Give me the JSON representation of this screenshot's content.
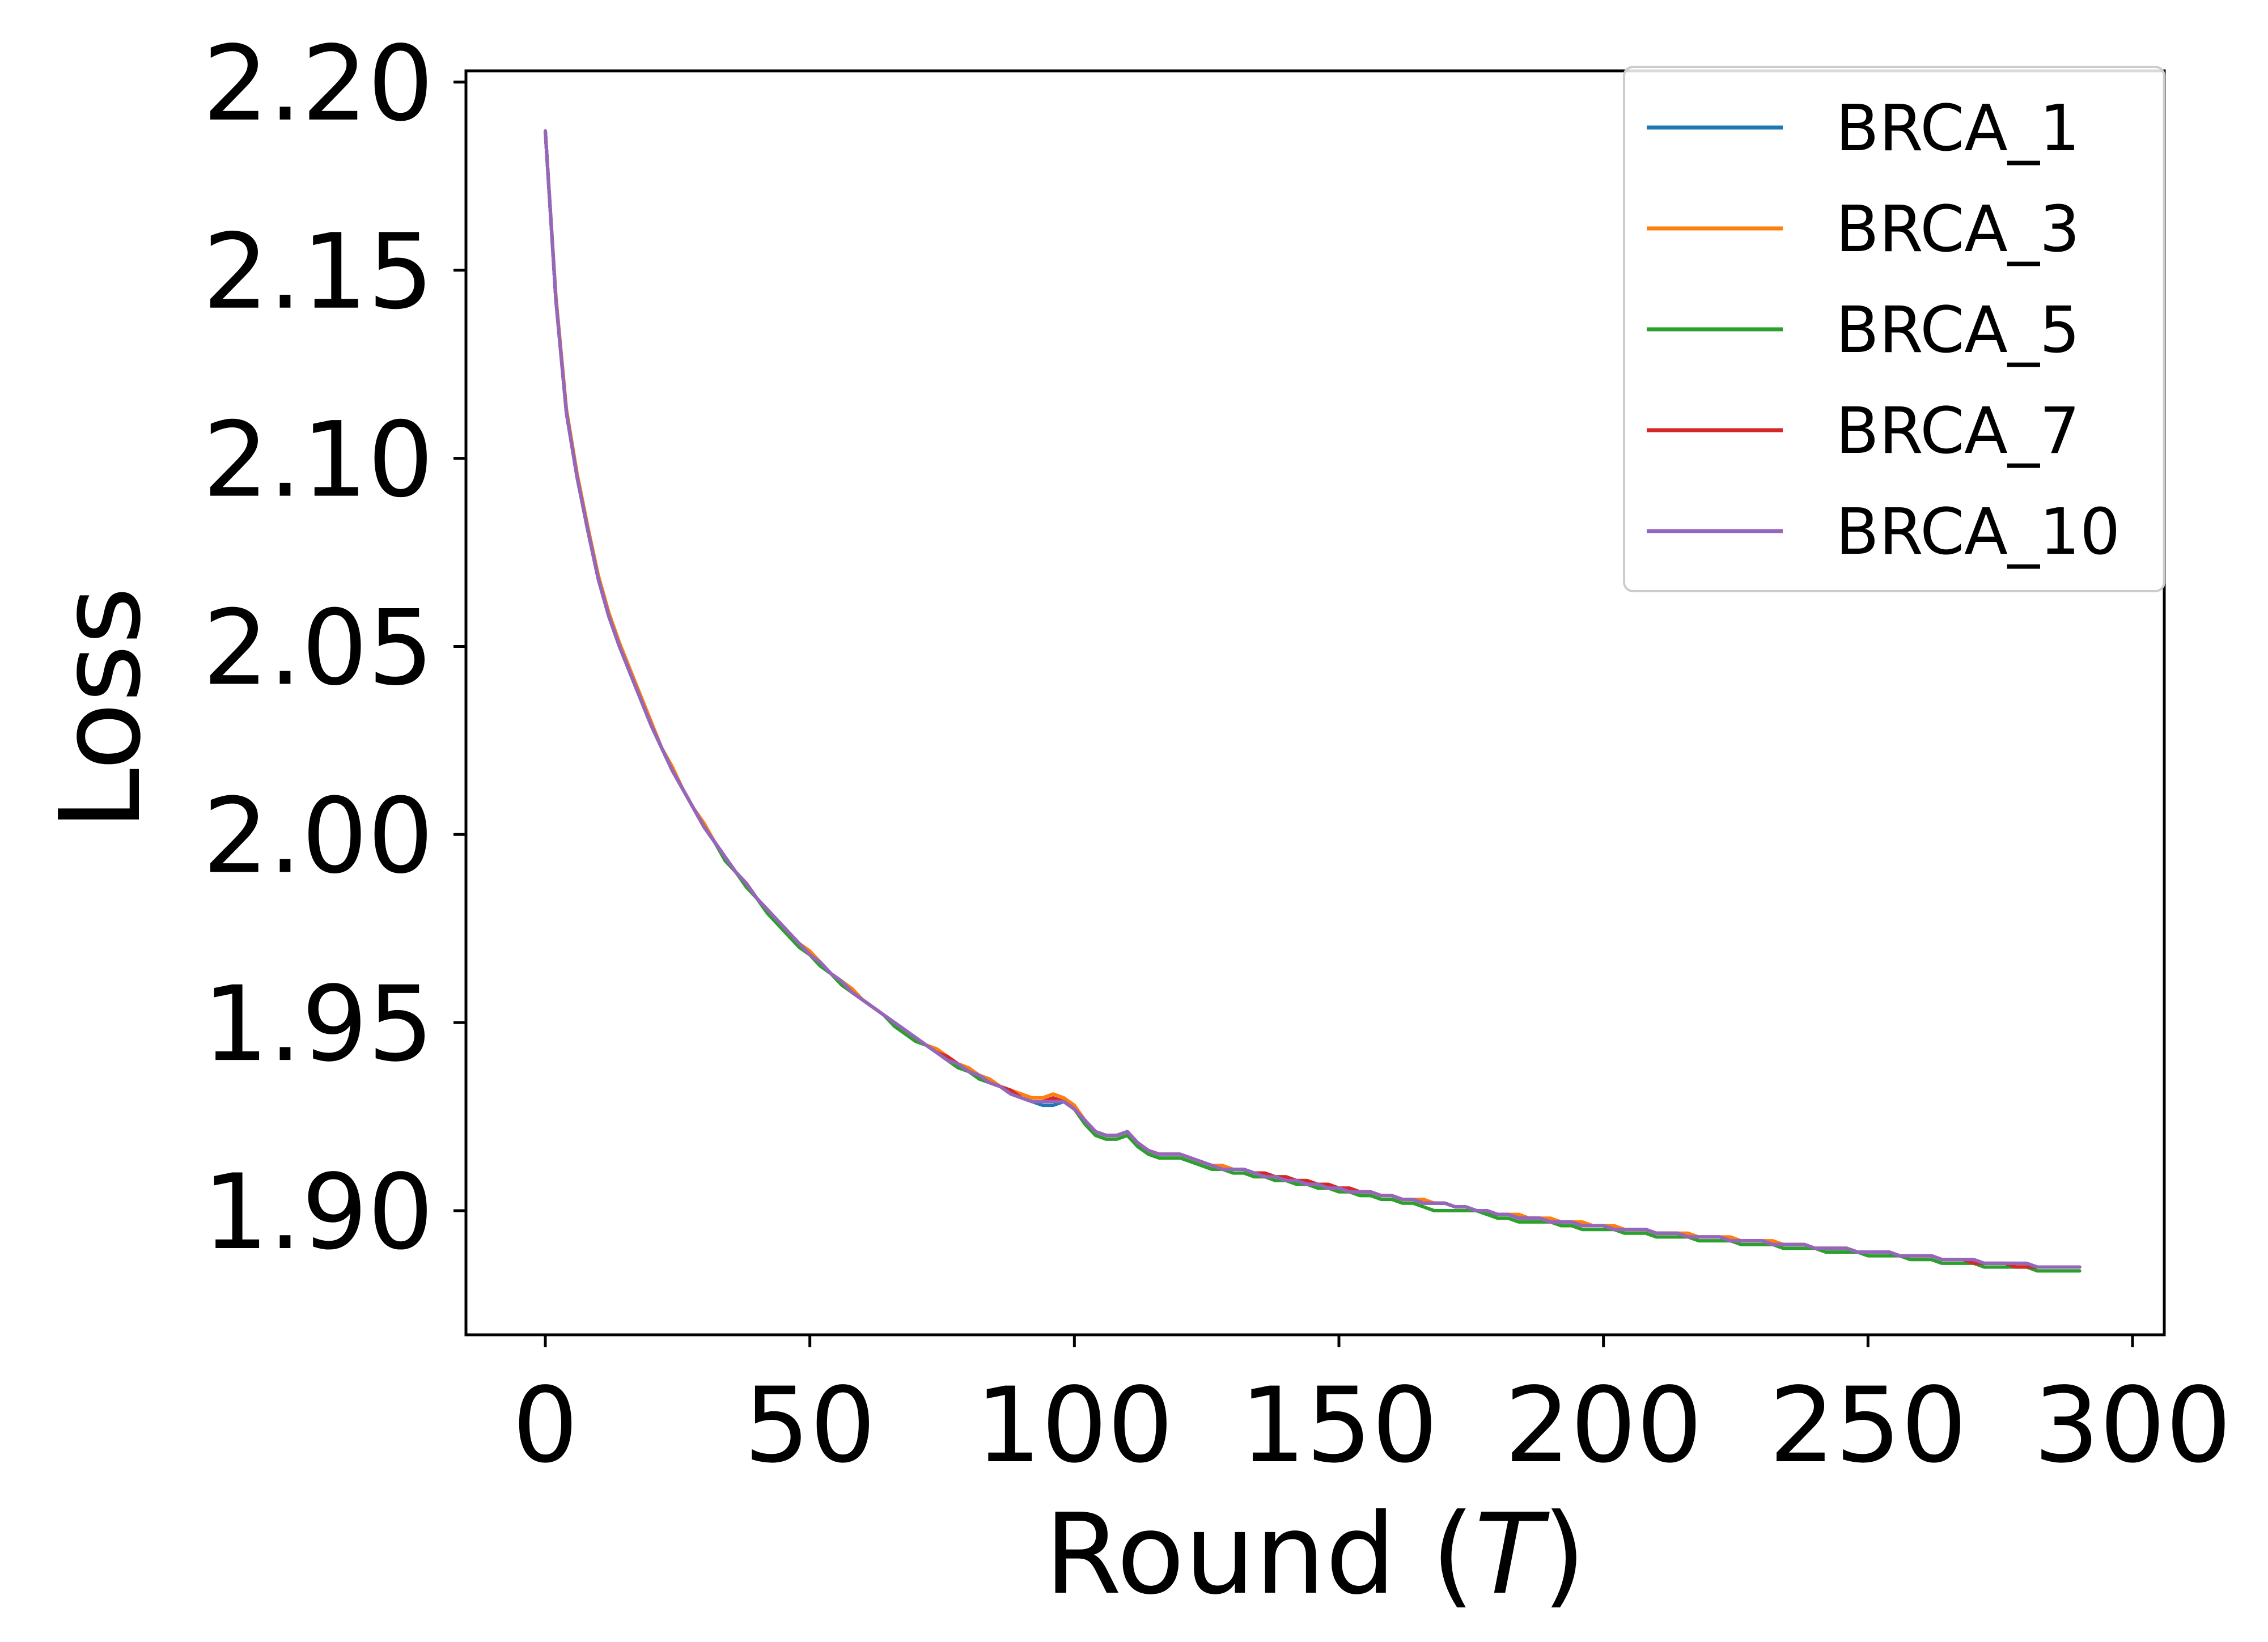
{
  "chart_data": {
    "type": "line",
    "xlabel_prefix": "Round (",
    "xlabel_var": "T",
    "xlabel_suffix": ")",
    "ylabel": "Loss",
    "xlim": [
      -15,
      306
    ],
    "ylim": [
      1.867,
      2.203
    ],
    "xticks": [
      0,
      50,
      100,
      150,
      200,
      250,
      300
    ],
    "xtick_labels": [
      "0",
      "50",
      "100",
      "150",
      "200",
      "250",
      "300"
    ],
    "yticks": [
      1.9,
      1.95,
      2.0,
      2.05,
      2.1,
      2.15,
      2.2
    ],
    "ytick_labels": [
      "1.90",
      "1.95",
      "2.00",
      "2.05",
      "2.10",
      "2.15",
      "2.20"
    ],
    "grid": false,
    "legend_position": "top-right",
    "x": [
      0,
      2,
      4,
      6,
      8,
      10,
      12,
      14,
      16,
      18,
      20,
      22,
      24,
      26,
      28,
      30,
      32,
      34,
      36,
      38,
      40,
      42,
      44,
      46,
      48,
      50,
      52,
      54,
      56,
      58,
      60,
      62,
      64,
      66,
      68,
      70,
      72,
      74,
      76,
      78,
      80,
      82,
      84,
      86,
      88,
      90,
      92,
      94,
      96,
      98,
      100,
      102,
      104,
      106,
      108,
      110,
      112,
      114,
      116,
      118,
      120,
      122,
      124,
      126,
      128,
      130,
      132,
      134,
      136,
      138,
      140,
      142,
      144,
      146,
      148,
      150,
      152,
      154,
      156,
      158,
      160,
      162,
      164,
      166,
      168,
      170,
      172,
      174,
      176,
      178,
      180,
      182,
      184,
      186,
      188,
      190,
      192,
      194,
      196,
      198,
      200,
      202,
      204,
      206,
      208,
      210,
      212,
      214,
      216,
      218,
      220,
      222,
      224,
      226,
      228,
      230,
      232,
      234,
      236,
      238,
      240,
      242,
      244,
      246,
      248,
      250,
      252,
      254,
      256,
      258,
      260,
      262,
      264,
      266,
      268,
      270,
      272,
      274,
      276,
      278,
      280,
      282,
      284,
      286,
      288,
      290
    ],
    "series": [
      {
        "name": "BRCA_1",
        "color": "#1f77b4",
        "values": [
          2.187,
          2.142,
          2.112,
          2.095,
          2.081,
          2.068,
          2.058,
          2.05,
          2.043,
          2.036,
          2.029,
          2.023,
          2.017,
          2.012,
          2.007,
          2.002,
          1.998,
          1.994,
          1.99,
          1.987,
          1.983,
          1.98,
          1.977,
          1.974,
          1.971,
          1.968,
          1.966,
          1.963,
          1.961,
          1.958,
          1.956,
          1.954,
          1.952,
          1.95,
          1.948,
          1.946,
          1.944,
          1.942,
          1.94,
          1.939,
          1.937,
          1.936,
          1.934,
          1.933,
          1.931,
          1.93,
          1.929,
          1.928,
          1.928,
          1.929,
          1.927,
          1.924,
          1.921,
          1.92,
          1.92,
          1.921,
          1.918,
          1.916,
          1.915,
          1.915,
          1.915,
          1.914,
          1.913,
          1.912,
          1.911,
          1.911,
          1.911,
          1.91,
          1.909,
          1.909,
          1.908,
          1.908,
          1.907,
          1.907,
          1.906,
          1.906,
          1.905,
          1.905,
          1.905,
          1.904,
          1.904,
          1.903,
          1.903,
          1.902,
          1.902,
          1.902,
          1.901,
          1.901,
          1.9,
          1.899,
          1.899,
          1.899,
          1.898,
          1.898,
          1.898,
          1.897,
          1.897,
          1.897,
          1.896,
          1.896,
          1.896,
          1.895,
          1.895,
          1.895,
          1.895,
          1.894,
          1.894,
          1.894,
          1.893,
          1.893,
          1.893,
          1.893,
          1.892,
          1.892,
          1.892,
          1.892,
          1.891,
          1.891,
          1.891,
          1.891,
          1.89,
          1.89,
          1.89,
          1.89,
          1.889,
          1.889,
          1.889,
          1.889,
          1.888,
          1.888,
          1.888,
          1.888,
          1.887,
          1.887,
          1.887,
          1.887,
          1.886,
          1.886,
          1.886,
          1.886,
          1.886,
          1.885,
          1.885,
          1.885,
          1.885,
          1.885
        ]
      },
      {
        "name": "BRCA_3",
        "color": "#ff7f0e",
        "values": [
          2.187,
          2.143,
          2.113,
          2.096,
          2.082,
          2.069,
          2.059,
          2.051,
          2.044,
          2.037,
          2.03,
          2.023,
          2.018,
          2.012,
          2.007,
          2.003,
          1.998,
          1.994,
          1.99,
          1.987,
          1.983,
          1.98,
          1.977,
          1.974,
          1.971,
          1.969,
          1.966,
          1.963,
          1.961,
          1.959,
          1.956,
          1.954,
          1.952,
          1.95,
          1.948,
          1.946,
          1.944,
          1.943,
          1.941,
          1.939,
          1.938,
          1.936,
          1.935,
          1.933,
          1.932,
          1.931,
          1.93,
          1.93,
          1.931,
          1.93,
          1.928,
          1.924,
          1.921,
          1.92,
          1.92,
          1.921,
          1.918,
          1.916,
          1.915,
          1.915,
          1.915,
          1.914,
          1.913,
          1.912,
          1.912,
          1.911,
          1.911,
          1.91,
          1.91,
          1.909,
          1.909,
          1.908,
          1.908,
          1.907,
          1.907,
          1.906,
          1.906,
          1.905,
          1.905,
          1.904,
          1.904,
          1.903,
          1.903,
          1.903,
          1.902,
          1.902,
          1.901,
          1.901,
          1.9,
          1.9,
          1.899,
          1.899,
          1.899,
          1.898,
          1.898,
          1.898,
          1.897,
          1.897,
          1.897,
          1.896,
          1.896,
          1.896,
          1.895,
          1.895,
          1.895,
          1.894,
          1.894,
          1.894,
          1.894,
          1.893,
          1.893,
          1.893,
          1.893,
          1.892,
          1.892,
          1.892,
          1.892,
          1.891,
          1.891,
          1.891,
          1.89,
          1.89,
          1.89,
          1.89,
          1.889,
          1.889,
          1.889,
          1.889,
          1.888,
          1.888,
          1.888,
          1.888,
          1.887,
          1.887,
          1.887,
          1.887,
          1.886,
          1.886,
          1.886,
          1.886,
          1.885,
          1.885,
          1.885,
          1.885,
          1.885,
          1.885
        ]
      },
      {
        "name": "BRCA_5",
        "color": "#2ca02c",
        "values": [
          2.187,
          2.142,
          2.112,
          2.095,
          2.081,
          2.068,
          2.058,
          2.05,
          2.043,
          2.036,
          2.029,
          2.023,
          2.017,
          2.012,
          2.007,
          2.002,
          1.998,
          1.993,
          1.99,
          1.986,
          1.983,
          1.979,
          1.976,
          1.973,
          1.97,
          1.968,
          1.965,
          1.963,
          1.96,
          1.958,
          1.956,
          1.954,
          1.952,
          1.949,
          1.947,
          1.945,
          1.944,
          1.942,
          1.94,
          1.938,
          1.937,
          1.935,
          1.934,
          1.933,
          1.931,
          1.93,
          1.929,
          1.929,
          1.929,
          1.929,
          1.927,
          1.923,
          1.92,
          1.919,
          1.919,
          1.92,
          1.917,
          1.915,
          1.914,
          1.914,
          1.914,
          1.913,
          1.912,
          1.911,
          1.911,
          1.91,
          1.91,
          1.909,
          1.909,
          1.908,
          1.908,
          1.907,
          1.907,
          1.906,
          1.906,
          1.905,
          1.905,
          1.904,
          1.904,
          1.903,
          1.903,
          1.902,
          1.902,
          1.901,
          1.9,
          1.9,
          1.9,
          1.9,
          1.9,
          1.899,
          1.898,
          1.898,
          1.897,
          1.897,
          1.897,
          1.897,
          1.896,
          1.896,
          1.895,
          1.895,
          1.895,
          1.895,
          1.894,
          1.894,
          1.894,
          1.893,
          1.893,
          1.893,
          1.893,
          1.892,
          1.892,
          1.892,
          1.892,
          1.891,
          1.891,
          1.891,
          1.891,
          1.89,
          1.89,
          1.89,
          1.89,
          1.889,
          1.889,
          1.889,
          1.889,
          1.888,
          1.888,
          1.888,
          1.888,
          1.887,
          1.887,
          1.887,
          1.886,
          1.886,
          1.886,
          1.886,
          1.885,
          1.885,
          1.885,
          1.885,
          1.885,
          1.884,
          1.884,
          1.884,
          1.884,
          1.884
        ]
      },
      {
        "name": "BRCA_7",
        "color": "#d62728",
        "values": [
          2.187,
          2.142,
          2.112,
          2.095,
          2.081,
          2.068,
          2.058,
          2.05,
          2.043,
          2.036,
          2.029,
          2.023,
          2.017,
          2.012,
          2.007,
          2.002,
          1.998,
          1.994,
          1.99,
          1.987,
          1.983,
          1.98,
          1.977,
          1.974,
          1.971,
          1.968,
          1.966,
          1.963,
          1.961,
          1.958,
          1.956,
          1.954,
          1.952,
          1.95,
          1.948,
          1.946,
          1.944,
          1.942,
          1.941,
          1.939,
          1.937,
          1.936,
          1.934,
          1.933,
          1.932,
          1.93,
          1.929,
          1.929,
          1.93,
          1.929,
          1.927,
          1.924,
          1.921,
          1.92,
          1.92,
          1.921,
          1.918,
          1.916,
          1.915,
          1.915,
          1.915,
          1.914,
          1.913,
          1.912,
          1.911,
          1.911,
          1.911,
          1.91,
          1.91,
          1.909,
          1.909,
          1.908,
          1.908,
          1.907,
          1.907,
          1.906,
          1.906,
          1.905,
          1.905,
          1.904,
          1.904,
          1.903,
          1.903,
          1.902,
          1.902,
          1.902,
          1.901,
          1.901,
          1.9,
          1.9,
          1.899,
          1.899,
          1.898,
          1.898,
          1.898,
          1.897,
          1.897,
          1.897,
          1.896,
          1.896,
          1.896,
          1.895,
          1.895,
          1.895,
          1.895,
          1.894,
          1.894,
          1.894,
          1.893,
          1.893,
          1.893,
          1.893,
          1.892,
          1.892,
          1.892,
          1.892,
          1.891,
          1.891,
          1.891,
          1.891,
          1.89,
          1.89,
          1.89,
          1.89,
          1.889,
          1.889,
          1.889,
          1.889,
          1.888,
          1.888,
          1.888,
          1.888,
          1.887,
          1.887,
          1.887,
          1.886,
          1.886,
          1.886,
          1.886,
          1.885,
          1.885,
          1.885,
          1.885,
          1.885,
          1.885,
          1.885
        ]
      },
      {
        "name": "BRCA_10",
        "color": "#9467bd",
        "values": [
          2.187,
          2.142,
          2.112,
          2.095,
          2.081,
          2.068,
          2.058,
          2.05,
          2.043,
          2.036,
          2.029,
          2.023,
          2.017,
          2.012,
          2.007,
          2.002,
          1.998,
          1.994,
          1.99,
          1.987,
          1.983,
          1.98,
          1.977,
          1.974,
          1.971,
          1.968,
          1.966,
          1.963,
          1.961,
          1.958,
          1.956,
          1.954,
          1.952,
          1.95,
          1.948,
          1.946,
          1.944,
          1.942,
          1.94,
          1.939,
          1.937,
          1.936,
          1.934,
          1.933,
          1.931,
          1.93,
          1.929,
          1.929,
          1.929,
          1.929,
          1.927,
          1.924,
          1.921,
          1.92,
          1.92,
          1.921,
          1.918,
          1.916,
          1.915,
          1.915,
          1.915,
          1.914,
          1.913,
          1.912,
          1.911,
          1.911,
          1.911,
          1.91,
          1.909,
          1.909,
          1.908,
          1.908,
          1.907,
          1.907,
          1.906,
          1.906,
          1.905,
          1.905,
          1.905,
          1.904,
          1.904,
          1.903,
          1.903,
          1.902,
          1.902,
          1.902,
          1.901,
          1.901,
          1.9,
          1.9,
          1.899,
          1.899,
          1.898,
          1.898,
          1.898,
          1.897,
          1.897,
          1.897,
          1.896,
          1.896,
          1.896,
          1.895,
          1.895,
          1.895,
          1.895,
          1.894,
          1.894,
          1.894,
          1.893,
          1.893,
          1.893,
          1.893,
          1.892,
          1.892,
          1.892,
          1.892,
          1.891,
          1.891,
          1.891,
          1.891,
          1.89,
          1.89,
          1.89,
          1.89,
          1.889,
          1.889,
          1.889,
          1.889,
          1.888,
          1.888,
          1.888,
          1.888,
          1.887,
          1.887,
          1.887,
          1.887,
          1.886,
          1.886,
          1.886,
          1.886,
          1.886,
          1.885,
          1.885,
          1.885,
          1.885,
          1.885
        ]
      }
    ]
  }
}
